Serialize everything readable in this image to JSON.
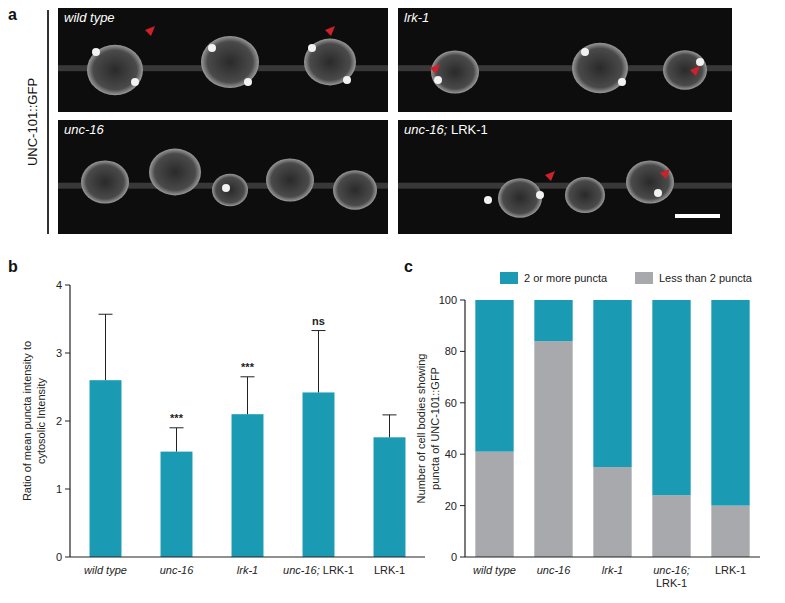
{
  "panel_a": {
    "letter": "a",
    "y_label": "UNC-101::GFP",
    "images": [
      "wild type",
      "lrk-1",
      "unc-16",
      "unc-16; LRK-1"
    ]
  },
  "panel_letters": [
    "b",
    "c"
  ],
  "chart_data": [
    {
      "type": "bar",
      "y_label": "Ratio of mean puncta intensity to cytosolic Intensity",
      "categories": [
        "wild type",
        "unc-16",
        "lrk-1",
        "unc-16; LRK-1",
        "LRK-1"
      ],
      "values": [
        2.6,
        1.55,
        2.1,
        2.42,
        1.76
      ],
      "errors": [
        0.97,
        0.35,
        0.55,
        0.91,
        0.33
      ],
      "annotations": [
        {
          "category": "unc-16",
          "text": "***"
        },
        {
          "category": "lrk-1",
          "text": "***"
        },
        {
          "category": "unc-16; LRK-1",
          "text": "ns"
        }
      ],
      "color": "#1a9bb3",
      "ylim": [
        0,
        4
      ],
      "yticks": [
        0,
        1,
        2,
        3,
        4
      ],
      "grid": false
    },
    {
      "type": "bar",
      "stacked": true,
      "y_label": "Number of cell bodies showing puncta of UNC-101::GFP",
      "categories": [
        "wild type",
        "unc-16",
        "lrk-1",
        "unc-16; LRK-1",
        "LRK-1"
      ],
      "series": [
        {
          "name": "Less than 2 puncta",
          "color": "#a7a9ac",
          "values": [
            41,
            84,
            35,
            24,
            20
          ]
        },
        {
          "name": "2 or more puncta",
          "color": "#1a9bb3",
          "values": [
            59,
            16,
            65,
            76,
            80
          ]
        }
      ],
      "legend": "top",
      "ylim": [
        0,
        100
      ],
      "yticks": [
        0,
        20,
        40,
        60,
        80,
        100
      ],
      "grid": false
    }
  ]
}
